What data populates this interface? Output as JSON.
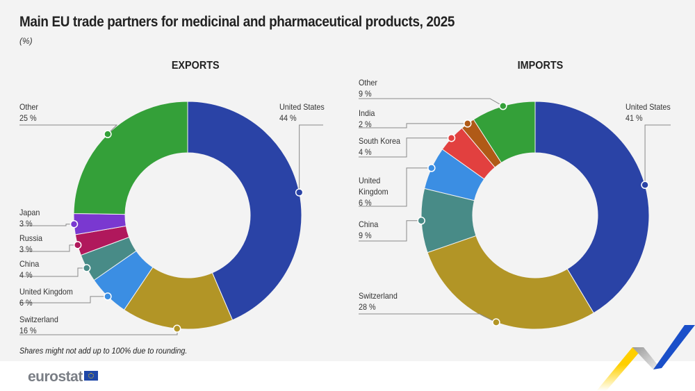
{
  "title": "Main EU trade partners for medicinal and pharmaceutical products, 2025",
  "unit": "(%)",
  "note": "Shares might not add up to 100% due to rounding.",
  "logo": "eurostat",
  "chart_data": [
    {
      "type": "pie",
      "title": "EXPORTS",
      "donut": true,
      "categories": [
        "United States",
        "Switzerland",
        "United Kingdom",
        "China",
        "Russia",
        "Japan",
        "Other"
      ],
      "values": [
        44,
        16,
        6,
        4,
        3,
        3,
        25
      ],
      "labels": [
        "44 %",
        "16 %",
        "6 %",
        "4 %",
        "3 %",
        "3 %",
        "25 %"
      ],
      "colors": [
        "#2a43a6",
        "#b29526",
        "#3b8ee3",
        "#488b87",
        "#b0185c",
        "#7a38d0",
        "#34a039"
      ]
    },
    {
      "type": "pie",
      "title": "IMPORTS",
      "donut": true,
      "categories": [
        "United States",
        "Switzerland",
        "China",
        "United Kingdom",
        "South Korea",
        "India",
        "Other"
      ],
      "values": [
        41,
        28,
        9,
        6,
        4,
        2,
        9
      ],
      "labels": [
        "41 %",
        "28 %",
        "9 %",
        "6 %",
        "4 %",
        "2 %",
        "9 %"
      ],
      "colors": [
        "#2a43a6",
        "#b29526",
        "#488b87",
        "#3b8ee3",
        "#e2403f",
        "#b05a17",
        "#34a039"
      ]
    }
  ]
}
